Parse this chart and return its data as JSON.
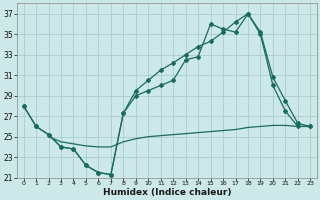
{
  "background_color": "#cce8e8",
  "grid_color": "#aacccc",
  "line_color": "#1a6b5e",
  "x_label": "Humidex (Indice chaleur)",
  "ylim": [
    21,
    38
  ],
  "xlim": [
    -0.5,
    23.5
  ],
  "yticks": [
    21,
    23,
    25,
    27,
    29,
    31,
    33,
    35,
    37
  ],
  "xticks": [
    0,
    1,
    2,
    3,
    4,
    5,
    6,
    7,
    8,
    9,
    10,
    11,
    12,
    13,
    14,
    15,
    16,
    17,
    18,
    19,
    20,
    21,
    22,
    23
  ],
  "s1_x": [
    0,
    1,
    2,
    3,
    4,
    5,
    6,
    7,
    8,
    9,
    10,
    11,
    12,
    13,
    14,
    15,
    16,
    17,
    18,
    19,
    20,
    21,
    22,
    23
  ],
  "s1_y": [
    28,
    26,
    25.2,
    24.0,
    23.8,
    22.2,
    21.5,
    21.3,
    27.3,
    29.0,
    29.5,
    30.0,
    30.5,
    32.5,
    32.8,
    36.0,
    35.5,
    35.2,
    37.0,
    35.2,
    30.8,
    28.5,
    26.3,
    26.0
  ],
  "s2_x": [
    0,
    1,
    2,
    3,
    4,
    5,
    6,
    7,
    8,
    9,
    10,
    11,
    12,
    13,
    14,
    15,
    16,
    17,
    18,
    19,
    20,
    21,
    22,
    23
  ],
  "s2_y": [
    28,
    26,
    25.2,
    24.0,
    23.8,
    22.2,
    21.5,
    21.3,
    27.3,
    29.5,
    30.5,
    31.5,
    32.2,
    33.0,
    33.8,
    34.3,
    35.2,
    36.2,
    37.0,
    35.0,
    30.0,
    27.5,
    26.0,
    26.0
  ],
  "s3_x": [
    2,
    3,
    4,
    5,
    6,
    7,
    8,
    9,
    10,
    11,
    12,
    13,
    14,
    15,
    16,
    17,
    18,
    19,
    20,
    21,
    22,
    23
  ],
  "s3_y": [
    25.0,
    24.5,
    24.3,
    24.1,
    24.0,
    24.0,
    24.5,
    24.8,
    25.0,
    25.1,
    25.2,
    25.3,
    25.4,
    25.5,
    25.6,
    25.7,
    25.9,
    26.0,
    26.1,
    26.1,
    26.0,
    26.0
  ]
}
